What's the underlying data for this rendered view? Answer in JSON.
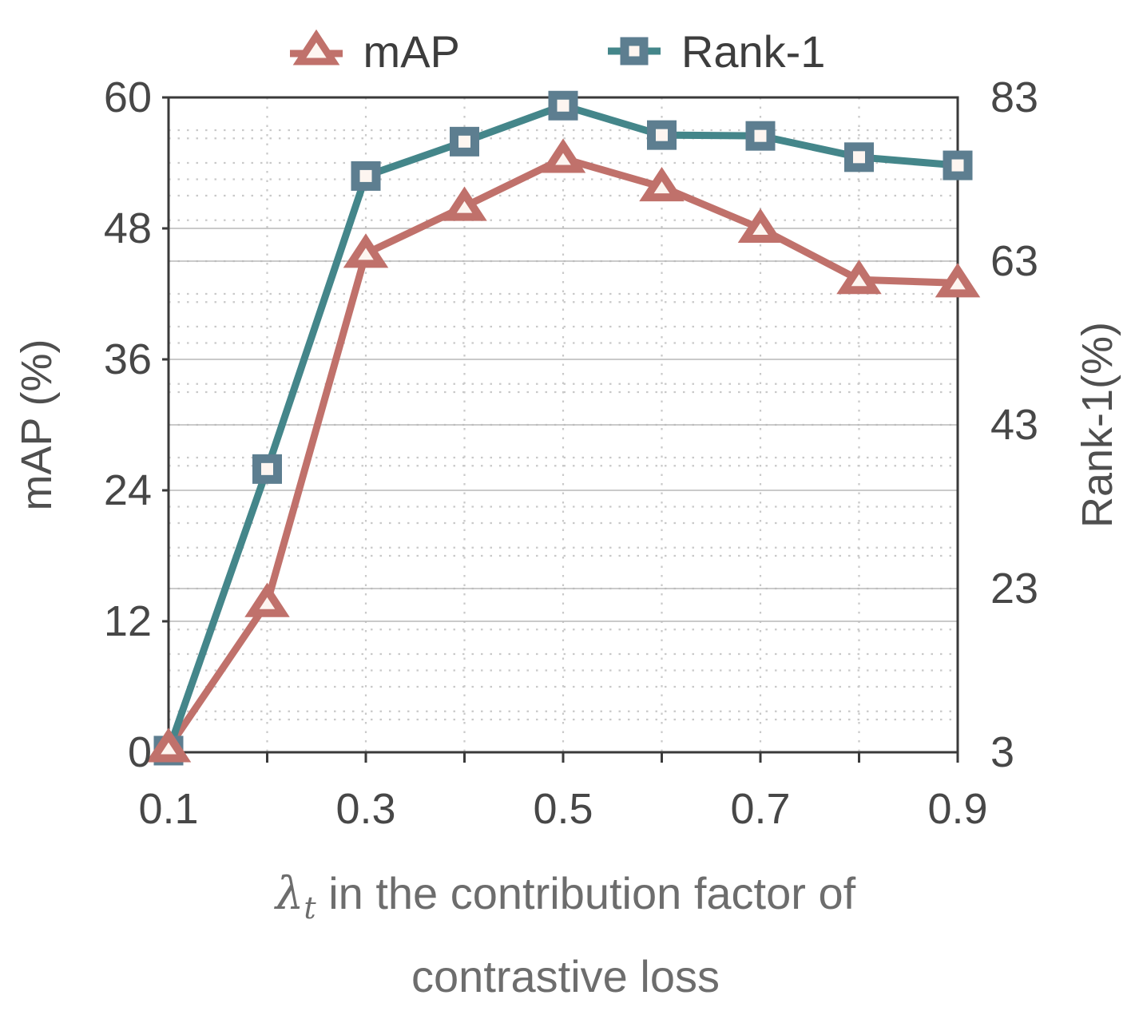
{
  "colors": {
    "background": "#ffffff",
    "axis_frame": "#3a3a3a",
    "grid_major": "#b9b9b9",
    "grid_minor": "#c9c9c9",
    "tick_label": "#474747",
    "y_axis_title": "#4f4f4f",
    "x_axis_title": "#6d6d6d",
    "legend_text": "#3d3d3d",
    "map_red": "#c0716b",
    "rank1_teal": "#44868a",
    "square_edge": "#5d7e90",
    "marker_fill": "#fdf5f0"
  },
  "legend": {
    "items": [
      {
        "label": "mAP",
        "marker": "triangle-line-icon"
      },
      {
        "label": "Rank-1",
        "marker": "square-line-icon"
      }
    ]
  },
  "chart_data": {
    "type": "line",
    "title": "",
    "x": [
      0.1,
      0.2,
      0.3,
      0.4,
      0.5,
      0.6,
      0.7,
      0.8,
      0.9
    ],
    "x_range": [
      0.1,
      0.9
    ],
    "x_tick_labels": [
      "0.1",
      "0.3",
      "0.5",
      "0.7",
      "0.9"
    ],
    "xlabel": {
      "lambda": "λ",
      "sub": "t",
      "rest": " in the contribution factor of",
      "line2": "contrastive loss"
    },
    "ylabel_left": "mAP (%)",
    "ylabel_right": "Rank-1(%)",
    "left_axis": {
      "range": [
        0,
        60
      ],
      "ticks": [
        0,
        12,
        24,
        36,
        48,
        60
      ],
      "minor_step": 3
    },
    "right_axis": {
      "range": [
        3,
        83
      ],
      "ticks": [
        3,
        23,
        43,
        63,
        83
      ],
      "minor_step": 5
    },
    "grid": {
      "major_style": "solid",
      "minor_style": "dotted",
      "vertical_minor_at": [
        0.2,
        0.3,
        0.4,
        0.5,
        0.6,
        0.7,
        0.8
      ]
    },
    "legend_position": "top",
    "series": [
      {
        "name": "mAP",
        "axis": "left",
        "marker": "triangle",
        "line_color": "#c0716b",
        "marker_edge": "#c0716b",
        "marker_fill": "#fdf5f0",
        "values": [
          0.4,
          13.7,
          45.7,
          50.0,
          54.4,
          51.8,
          48.0,
          43.3,
          43.0
        ]
      },
      {
        "name": "Rank-1",
        "axis": "right",
        "marker": "square",
        "line_color": "#44868a",
        "marker_edge": "#5d7e90",
        "marker_fill": "#fdf5f0",
        "values": [
          3.2,
          37.6,
          73.4,
          77.6,
          82.0,
          78.4,
          78.3,
          75.7,
          74.7
        ]
      }
    ]
  }
}
